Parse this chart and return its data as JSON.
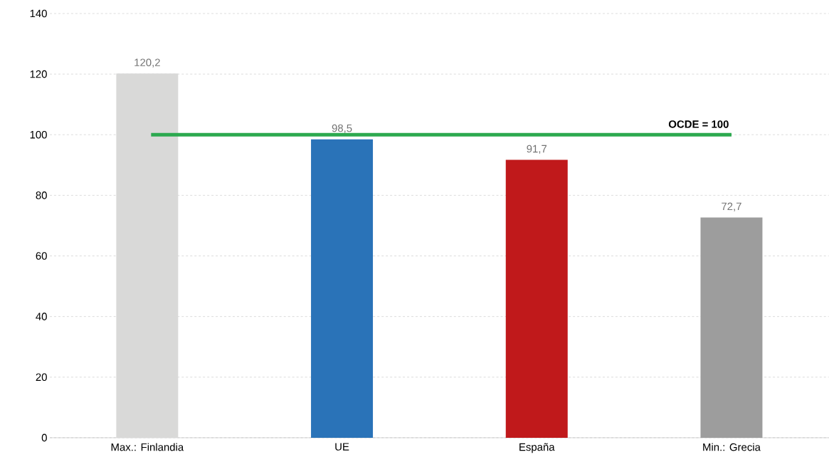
{
  "chart_data": {
    "type": "bar",
    "categories": [
      "Max.: Finlandia",
      "UE",
      "España",
      "Min.: Grecia"
    ],
    "values": [
      120.2,
      98.5,
      91.7,
      72.7
    ],
    "colors": [
      "#d9d9d8",
      "#2a73b8",
      "#c0191b",
      "#9d9d9d"
    ],
    "value_labels": [
      "120,2",
      "98,5",
      "91,7",
      "72,7"
    ],
    "ylim": [
      0,
      140
    ],
    "yticks": [
      0,
      20,
      40,
      60,
      80,
      100,
      120,
      140
    ],
    "grid": "y",
    "ref_lines": [
      {
        "axis": "y",
        "value": 100,
        "label": "OCDE = 100",
        "color": "#2ca94f"
      }
    ]
  }
}
